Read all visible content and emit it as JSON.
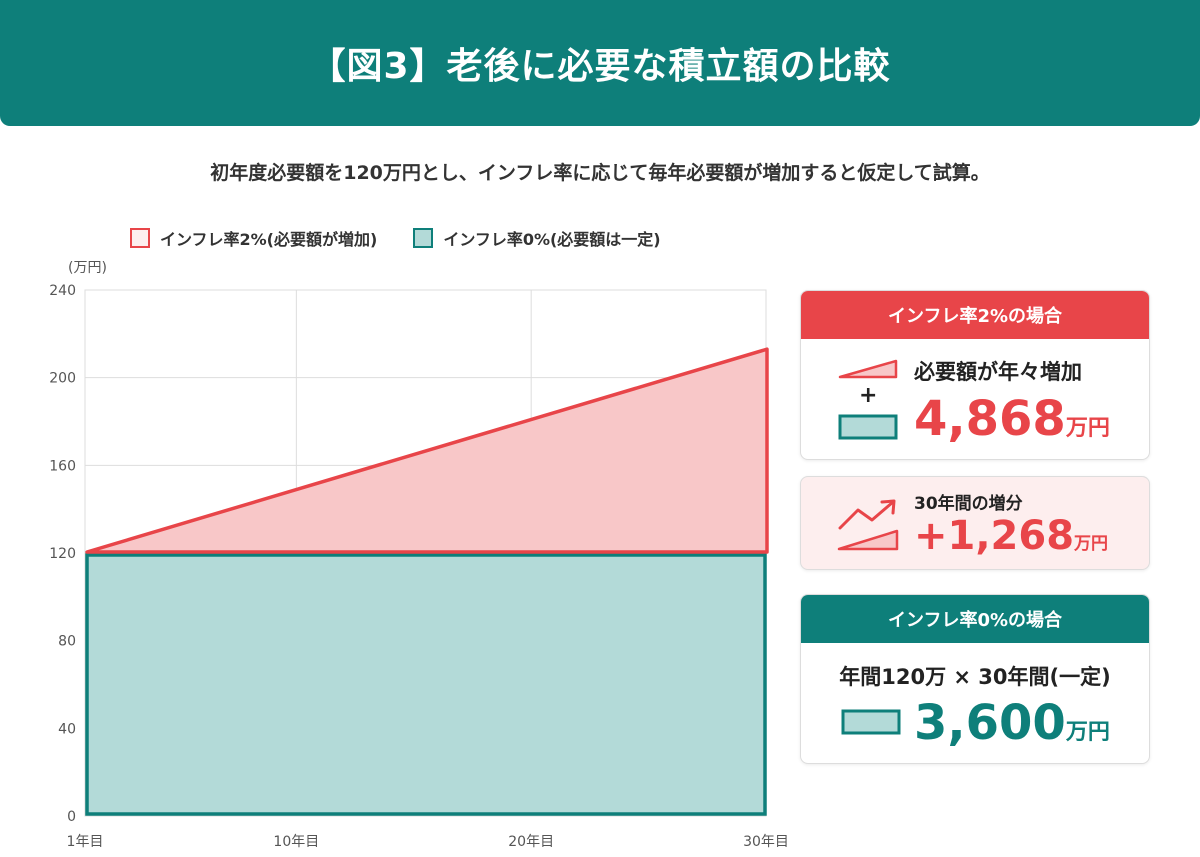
{
  "header": {
    "title": "【図3】老後に必要な積立額の比較"
  },
  "subtitle": "初年度必要額を120万円とし、インフレ率に応じて毎年必要額が増加すると仮定して試算。",
  "legend": [
    {
      "label": "インフレ率2%(必要額が増加)",
      "fill": "#f8c7c8",
      "stroke": "#e84549"
    },
    {
      "label": "インフレ率0%(必要額は一定)",
      "fill": "#b3dad8",
      "stroke": "#0e7f7a"
    }
  ],
  "chart_data": {
    "type": "area",
    "y_unit": "(万円)",
    "ylim": [
      0,
      240
    ],
    "y_ticks": [
      "0",
      "40",
      "80",
      "120",
      "160",
      "200",
      "240"
    ],
    "x_ticks": [
      {
        "label": "1年目",
        "year": 1
      },
      {
        "label": "10年目",
        "year": 10
      },
      {
        "label": "20年目",
        "year": 20
      },
      {
        "label": "30年目",
        "year": 30
      }
    ],
    "grid": true,
    "series": [
      {
        "name": "インフレ率2%(必要額が増加)",
        "start": 120,
        "end": 213,
        "color": "#e84549",
        "fill": "#f8c7c8"
      },
      {
        "name": "インフレ率0%(必要額は一定)",
        "start": 120,
        "end": 120,
        "color": "#0e7f7a",
        "fill": "#b3dad8"
      }
    ]
  },
  "cards": {
    "inflation2": {
      "title": "インフレ率2%の場合",
      "label": "必要額が年々増加",
      "plus": "+",
      "value": "4,868",
      "unit": "万円",
      "color": "#e84549"
    },
    "increase": {
      "title": "30年間の増分",
      "value": "+1,268",
      "unit": "万円",
      "color": "#e84549"
    },
    "inflation0": {
      "title": "インフレ率0%の場合",
      "label": "年間120万 × 30年間(一定)",
      "value": "3,600",
      "unit": "万円",
      "color": "#0e7f7a"
    }
  }
}
